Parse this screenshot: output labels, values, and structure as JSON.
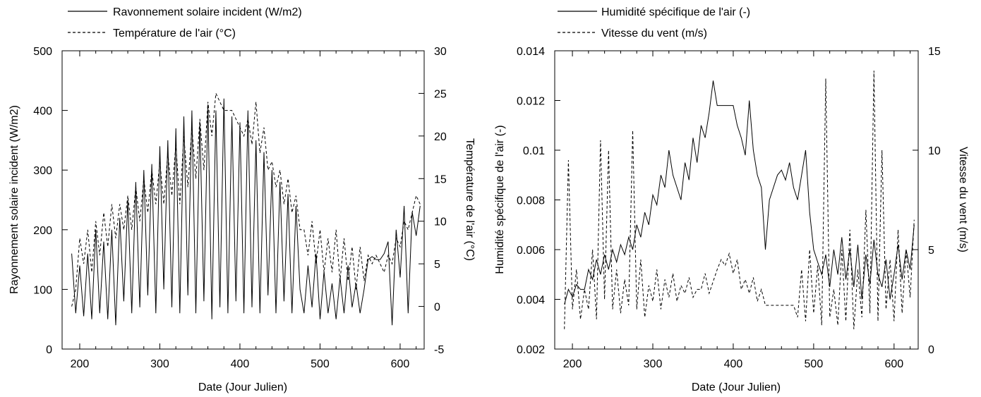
{
  "chart_data": [
    {
      "type": "line",
      "title": "",
      "xlabel": "Date (Jour Julien)",
      "ylabel": "Rayonnement solaire incident (W/m2)",
      "y2label": "Température de l'air (°C)",
      "xlim": [
        178,
        630
      ],
      "ylim": [
        0,
        500
      ],
      "y2lim": [
        -5,
        30
      ],
      "x_ticks": [
        200,
        300,
        400,
        500,
        600
      ],
      "y_ticks": [
        0,
        100,
        200,
        300,
        400,
        500
      ],
      "y2_ticks": [
        -5,
        0,
        5,
        10,
        15,
        20,
        25,
        30
      ],
      "grid": false,
      "legend_position": "top-left",
      "series": [
        {
          "name": "Ravonnement solaire incident (W/m2)",
          "axis": "left",
          "style": "solid",
          "x": [
            190,
            195,
            200,
            205,
            210,
            215,
            220,
            225,
            230,
            235,
            240,
            245,
            250,
            255,
            260,
            265,
            270,
            275,
            280,
            285,
            290,
            295,
            300,
            305,
            310,
            315,
            320,
            325,
            330,
            335,
            340,
            345,
            350,
            355,
            360,
            365,
            370,
            375,
            380,
            385,
            390,
            395,
            400,
            405,
            410,
            415,
            420,
            425,
            430,
            435,
            440,
            445,
            450,
            455,
            460,
            465,
            470,
            475,
            480,
            485,
            490,
            495,
            500,
            505,
            510,
            515,
            520,
            525,
            530,
            535,
            540,
            545,
            550,
            555,
            560,
            565,
            570,
            575,
            580,
            585,
            590,
            595,
            600,
            605,
            610,
            615,
            620,
            625
          ],
          "values": [
            160,
            60,
            140,
            55,
            160,
            50,
            200,
            60,
            180,
            50,
            200,
            40,
            220,
            80,
            250,
            60,
            280,
            70,
            300,
            90,
            310,
            60,
            340,
            100,
            350,
            70,
            370,
            60,
            390,
            90,
            400,
            60,
            380,
            80,
            410,
            50,
            400,
            70,
            420,
            60,
            390,
            80,
            380,
            60,
            400,
            70,
            350,
            60,
            330,
            90,
            300,
            60,
            280,
            80,
            260,
            60,
            240,
            100,
            60,
            140,
            70,
            160,
            50,
            130,
            60,
            110,
            50,
            120,
            60,
            140,
            70,
            110,
            60,
            100,
            150,
            155,
            150,
            150,
            160,
            180,
            40,
            200,
            120,
            240,
            60,
            230,
            190,
            240
          ]
        },
        {
          "name": "Température de l'air (°C)",
          "axis": "right",
          "style": "dashed",
          "x": [
            190,
            195,
            200,
            205,
            210,
            215,
            220,
            225,
            230,
            235,
            240,
            245,
            250,
            255,
            260,
            265,
            270,
            275,
            280,
            285,
            290,
            295,
            300,
            305,
            310,
            315,
            320,
            325,
            330,
            335,
            340,
            345,
            350,
            355,
            360,
            365,
            370,
            375,
            380,
            385,
            390,
            395,
            400,
            405,
            410,
            415,
            420,
            425,
            430,
            435,
            440,
            445,
            450,
            455,
            460,
            465,
            470,
            475,
            480,
            485,
            490,
            495,
            500,
            505,
            510,
            515,
            520,
            525,
            530,
            535,
            540,
            545,
            550,
            555,
            560,
            565,
            570,
            575,
            580,
            585,
            590,
            595,
            600,
            605,
            610,
            615,
            620,
            625
          ],
          "values": [
            0,
            2,
            8,
            5,
            9,
            4,
            10,
            6,
            11,
            7,
            12,
            8,
            12,
            9,
            13,
            9,
            14,
            10,
            15,
            11,
            16,
            12,
            17,
            12,
            18,
            13,
            19,
            12,
            20,
            14,
            21,
            15,
            22,
            16,
            24,
            20,
            25,
            24,
            23,
            23,
            23,
            22,
            21,
            20,
            22,
            19,
            24,
            18,
            21,
            16,
            17,
            14,
            16,
            12,
            15,
            11,
            13,
            9,
            9,
            6,
            10,
            5,
            9,
            4,
            8,
            4,
            9,
            3,
            8,
            3,
            7,
            2,
            7,
            3,
            6,
            5,
            6,
            5,
            4,
            6,
            5,
            8,
            7,
            10,
            9,
            11,
            13,
            12
          ]
        }
      ]
    },
    {
      "type": "line",
      "title": "",
      "xlabel": "Date (Jour Julien)",
      "ylabel": "Humidité spécifique de l'air (-)",
      "y2label": "Vitesse du vent (m/s)",
      "xlim": [
        178,
        630
      ],
      "ylim": [
        0.002,
        0.014
      ],
      "y2lim": [
        0,
        15
      ],
      "x_ticks": [
        200,
        300,
        400,
        500,
        600
      ],
      "y_ticks": [
        "0.002",
        "0.004",
        "0.006",
        "0.008",
        "0.01",
        "0.012",
        "0.014"
      ],
      "y2_ticks": [
        0,
        5,
        10,
        15
      ],
      "grid": false,
      "legend_position": "top-left",
      "series": [
        {
          "name": "Humidité spécifique de l'air (-)",
          "axis": "left",
          "style": "solid",
          "x": [
            190,
            195,
            200,
            205,
            210,
            215,
            220,
            225,
            230,
            235,
            240,
            245,
            250,
            255,
            260,
            265,
            270,
            275,
            280,
            285,
            290,
            295,
            300,
            305,
            310,
            315,
            320,
            325,
            330,
            335,
            340,
            345,
            350,
            355,
            360,
            365,
            370,
            375,
            380,
            385,
            390,
            395,
            400,
            405,
            410,
            415,
            420,
            425,
            430,
            435,
            440,
            445,
            450,
            455,
            460,
            465,
            470,
            475,
            480,
            485,
            490,
            495,
            500,
            505,
            510,
            515,
            520,
            525,
            530,
            535,
            540,
            545,
            550,
            555,
            560,
            565,
            570,
            575,
            580,
            585,
            590,
            595,
            600,
            605,
            610,
            615,
            620,
            625
          ],
          "values": [
            0.0038,
            0.0044,
            0.0041,
            0.0046,
            0.0044,
            0.0044,
            0.0052,
            0.0048,
            0.0056,
            0.005,
            0.0058,
            0.0052,
            0.006,
            0.0055,
            0.0062,
            0.0058,
            0.0065,
            0.006,
            0.007,
            0.0065,
            0.0075,
            0.007,
            0.0082,
            0.0078,
            0.009,
            0.0085,
            0.01,
            0.009,
            0.0085,
            0.008,
            0.0095,
            0.0088,
            0.0105,
            0.0095,
            0.011,
            0.0105,
            0.0115,
            0.0128,
            0.0118,
            0.0118,
            0.0118,
            0.0118,
            0.0118,
            0.011,
            0.0105,
            0.0098,
            0.012,
            0.01,
            0.009,
            0.0085,
            0.006,
            0.008,
            0.0085,
            0.009,
            0.0092,
            0.0088,
            0.0095,
            0.0085,
            0.008,
            0.009,
            0.01,
            0.0075,
            0.006,
            0.0055,
            0.005,
            0.0058,
            0.0045,
            0.006,
            0.005,
            0.0065,
            0.0048,
            0.006,
            0.0045,
            0.0062,
            0.004,
            0.0058,
            0.0046,
            0.0064,
            0.005,
            0.0045,
            0.0056,
            0.004,
            0.005,
            0.0062,
            0.0048,
            0.006,
            0.0052,
            0.007
          ]
        },
        {
          "name": "Vitesse du vent (m/s)",
          "axis": "right",
          "style": "dashed",
          "x": [
            190,
            195,
            200,
            205,
            210,
            215,
            220,
            225,
            230,
            235,
            240,
            245,
            250,
            255,
            260,
            265,
            270,
            275,
            280,
            285,
            290,
            295,
            300,
            305,
            310,
            315,
            320,
            325,
            330,
            335,
            340,
            345,
            350,
            355,
            360,
            365,
            370,
            375,
            380,
            385,
            390,
            395,
            400,
            405,
            410,
            415,
            420,
            425,
            430,
            435,
            440,
            445,
            450,
            455,
            460,
            465,
            470,
            475,
            480,
            485,
            490,
            495,
            500,
            505,
            510,
            515,
            520,
            525,
            530,
            535,
            540,
            545,
            550,
            555,
            560,
            565,
            570,
            575,
            580,
            585,
            590,
            595,
            600,
            605,
            610,
            615,
            620,
            625
          ],
          "values": [
            1.0,
            9.5,
            2.0,
            4.0,
            1.5,
            3.0,
            2.0,
            5.0,
            1.5,
            10.5,
            2.5,
            10.0,
            2.0,
            4.0,
            1.8,
            3.5,
            2.2,
            11.0,
            2.0,
            4.5,
            1.6,
            3.2,
            2.4,
            4.0,
            2.0,
            3.5,
            2.6,
            3.8,
            2.4,
            3.2,
            2.8,
            3.6,
            2.6,
            3.0,
            3.0,
            3.8,
            2.8,
            3.4,
            4.0,
            4.5,
            4.2,
            4.8,
            3.8,
            4.5,
            3.0,
            3.5,
            2.8,
            3.6,
            2.4,
            3.0,
            2.2,
            2.2,
            2.2,
            2.2,
            2.2,
            2.2,
            2.2,
            2.2,
            1.6,
            4.0,
            1.4,
            5.0,
            1.8,
            4.2,
            1.2,
            13.6,
            1.6,
            3.0,
            1.2,
            5.0,
            1.4,
            6.0,
            1.0,
            4.0,
            1.6,
            7.0,
            1.8,
            14.0,
            1.4,
            10.0,
            2.0,
            4.5,
            1.4,
            6.0,
            1.8,
            5.0,
            2.6,
            6.5
          ]
        }
      ]
    }
  ]
}
